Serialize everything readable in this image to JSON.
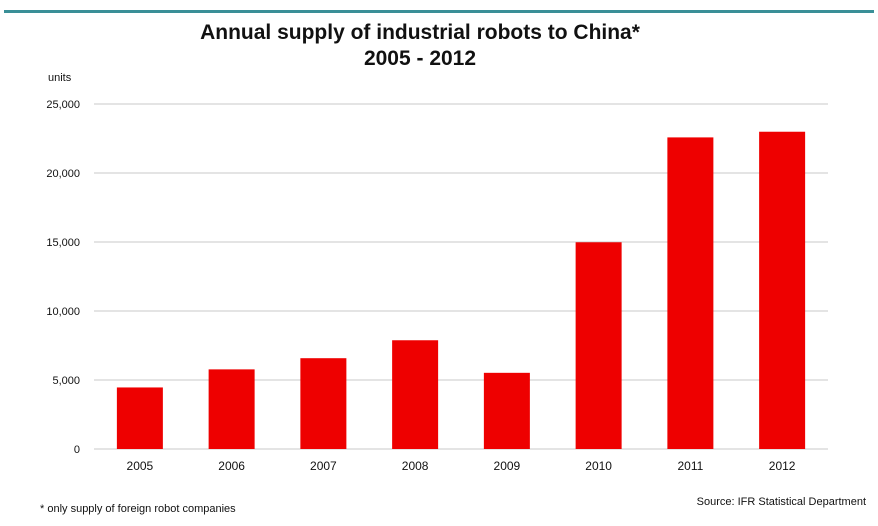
{
  "title_line1": "Annual supply of industrial robots to China*",
  "title_line2": "2005 - 2012",
  "footnote": "* only supply of foreign robot companies",
  "source": "Source: IFR Statistical Department",
  "colors": {
    "bar": "#ee0000",
    "grid": "#c8c8c8",
    "accent_rule": "#3a8f97"
  },
  "chart_data": {
    "type": "bar",
    "title": "Annual supply of industrial robots to China* 2005 - 2012",
    "ylabel": "units",
    "xlabel": "",
    "categories": [
      "2005",
      "2006",
      "2007",
      "2008",
      "2009",
      "2010",
      "2011",
      "2012"
    ],
    "values": [
      4460,
      5770,
      6580,
      7880,
      5520,
      14980,
      22580,
      22990
    ],
    "ylim": [
      0,
      25000
    ],
    "yticks": [
      0,
      5000,
      10000,
      15000,
      20000,
      25000
    ],
    "ytick_labels": [
      "0",
      "5,000",
      "10,000",
      "15,000",
      "20,000",
      "25,000"
    ],
    "grid": true,
    "legend": "none"
  }
}
